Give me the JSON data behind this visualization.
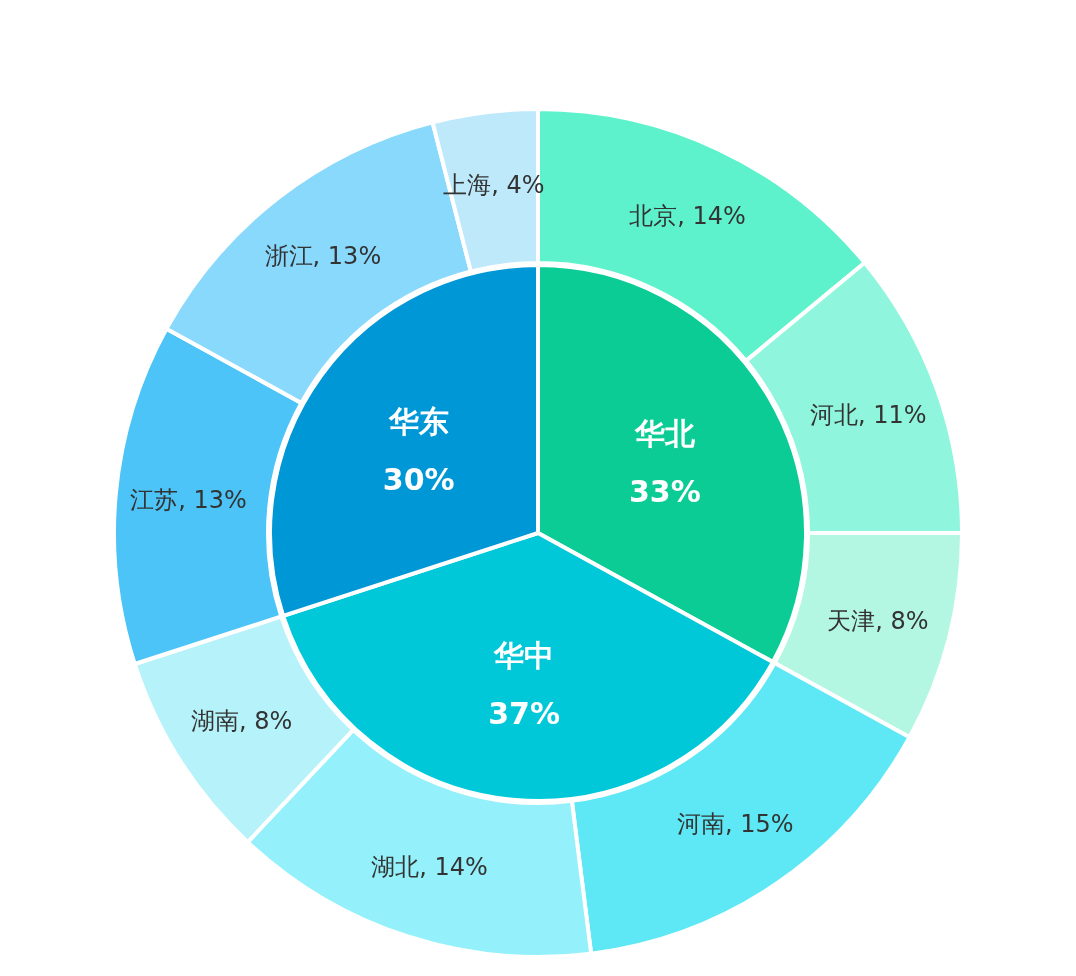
{
  "chart_data": [
    {
      "type": "pie",
      "categories": [
        "华北",
        "华中",
        "华东"
      ],
      "values": [
        33,
        37,
        30
      ],
      "value_labels": [
        "33%",
        "37%",
        "30%"
      ],
      "colors": [
        "#0ccc96",
        "#00c8d8",
        "#0097d6"
      ]
    },
    {
      "type": "donut",
      "categories": [
        "北京",
        "河北",
        "天津",
        "河南",
        "湖北",
        "湖南",
        "江苏",
        "浙江",
        "上海"
      ],
      "values": [
        14,
        11,
        8,
        15,
        14,
        8,
        13,
        13,
        4
      ],
      "value_labels": [
        "14%",
        "11%",
        "8%",
        "15%",
        "14%",
        "8%",
        "13%",
        "13%",
        "4%"
      ],
      "colors": [
        "#5ef2cc",
        "#8ff5dc",
        "#b3f7e3",
        "#5ee8f5",
        "#94f0fa",
        "#b5f2f9",
        "#4dc4f7",
        "#88d9fc",
        "#bde9fb"
      ]
    }
  ]
}
